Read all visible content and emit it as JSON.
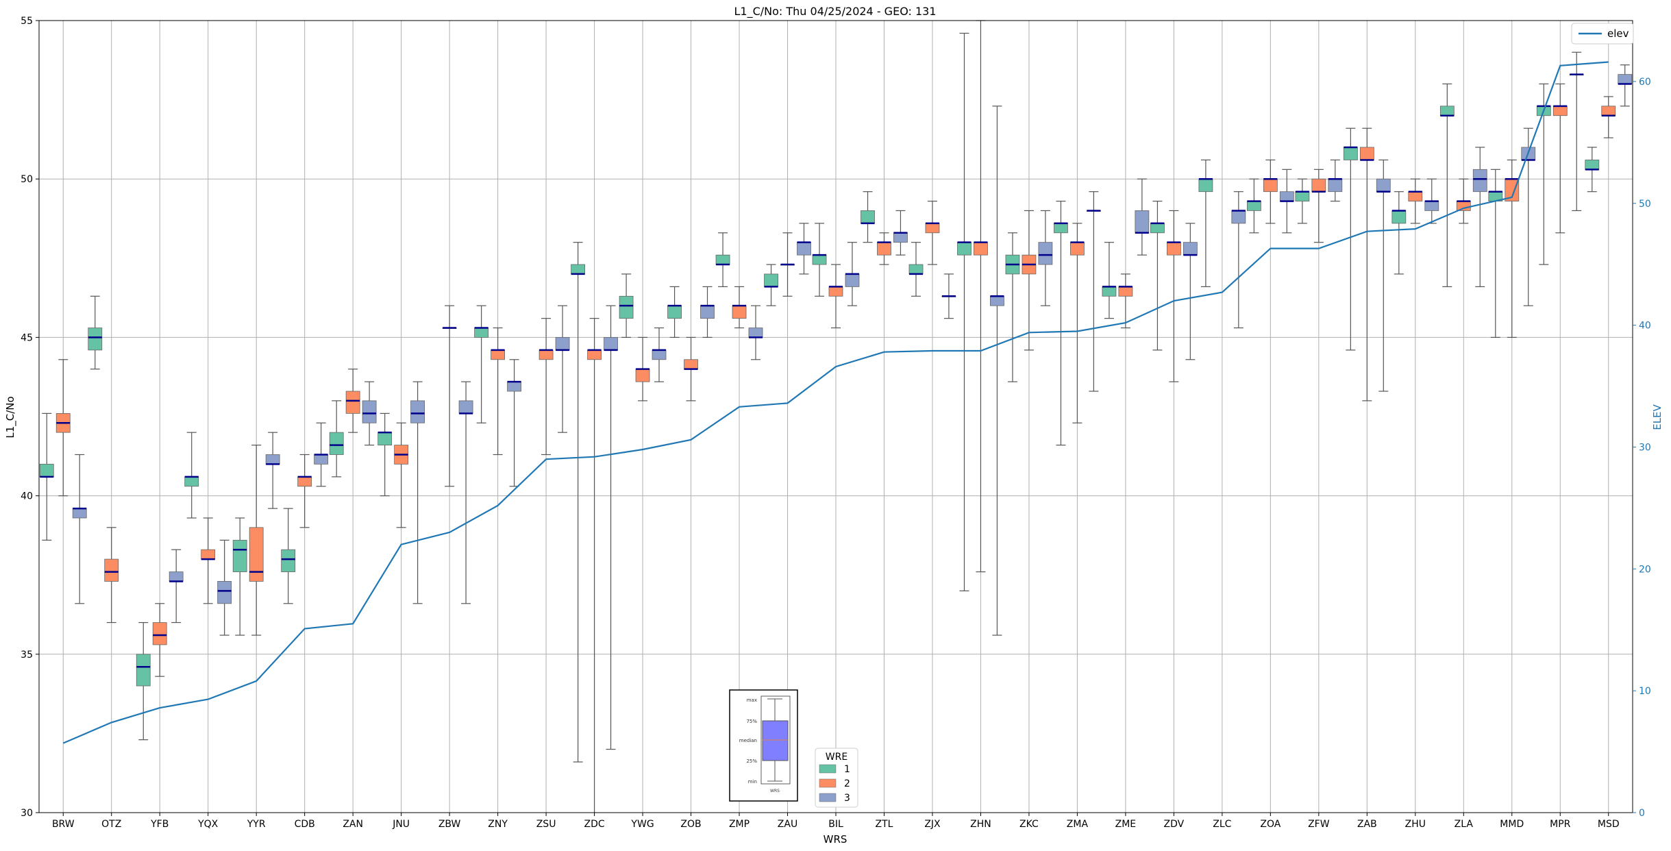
{
  "colors": {
    "series_1": "#66c2a5",
    "series_2": "#fc8d62",
    "series_3": "#8da0cb",
    "elev_line": "#1f77b4",
    "median": "#00008b",
    "whisker": "#555555",
    "grid": "#b0b0b0",
    "inset_box": "#7f7fff",
    "inset_median": "#c08080"
  },
  "chart_data": {
    "type": "box",
    "title": "L1_C/No: Thu 04/25/2024 - GEO: 131",
    "xlabel": "WRS",
    "ylabel": "L1_C/No",
    "y2label": "ELEV",
    "ylim": [
      30,
      55
    ],
    "y2lim": [
      0,
      65
    ],
    "yticks": [
      30,
      35,
      40,
      45,
      50,
      55
    ],
    "y2ticks": [
      0,
      10,
      20,
      30,
      40,
      50,
      60
    ],
    "grid": true,
    "categories": [
      "BRW",
      "OTZ",
      "YFB",
      "YQX",
      "YYR",
      "CDB",
      "ZAN",
      "JNU",
      "ZBW",
      "ZNY",
      "ZSU",
      "ZDC",
      "YWG",
      "ZOB",
      "ZMP",
      "ZAU",
      "BIL",
      "ZTL",
      "ZJX",
      "ZHN",
      "ZKC",
      "ZMA",
      "ZME",
      "ZDV",
      "ZLC",
      "ZOA",
      "ZFW",
      "ZAB",
      "ZHU",
      "ZLA",
      "MMD",
      "MPR",
      "MSD"
    ],
    "legend_elev": {
      "label": "elev",
      "placement": "top-right"
    },
    "legend_wre": {
      "title": "WRE",
      "placement": "bottom-center",
      "entries": [
        "1",
        "2",
        "3"
      ]
    },
    "box_key": {
      "labels": [
        "max",
        "75%",
        "median",
        "25%",
        "min"
      ],
      "xlabel": "WRS"
    },
    "series": [
      {
        "name": "1",
        "boxes": [
          {
            "min": 38.6,
            "q1": 40.6,
            "med": 40.6,
            "q3": 41.0,
            "max": 42.6
          },
          {
            "min": 44.0,
            "q1": 44.6,
            "med": 45.0,
            "q3": 45.3,
            "max": 46.3
          },
          {
            "min": 32.3,
            "q1": 34.0,
            "med": 34.6,
            "q3": 35.0,
            "max": 36.0
          },
          {
            "min": 39.3,
            "q1": 40.3,
            "med": 40.6,
            "q3": 40.6,
            "max": 42.0
          },
          {
            "min": 35.6,
            "q1": 37.6,
            "med": 38.3,
            "q3": 38.6,
            "max": 39.3
          },
          {
            "min": 36.6,
            "q1": 37.6,
            "med": 38.0,
            "q3": 38.3,
            "max": 39.6
          },
          {
            "min": 40.6,
            "q1": 41.3,
            "med": 41.6,
            "q3": 42.0,
            "max": 43.0
          },
          {
            "min": 40.0,
            "q1": 41.6,
            "med": 42.0,
            "q3": 42.0,
            "max": 42.6
          },
          null,
          {
            "min": 42.3,
            "q1": 45.0,
            "med": 45.3,
            "q3": 45.3,
            "max": 46.0
          },
          null,
          {
            "min": 31.6,
            "q1": 47.0,
            "med": 47.0,
            "q3": 47.3,
            "max": 48.0
          },
          {
            "min": 45.0,
            "q1": 45.6,
            "med": 46.0,
            "q3": 46.3,
            "max": 47.0
          },
          {
            "min": 45.0,
            "q1": 45.6,
            "med": 46.0,
            "q3": 46.0,
            "max": 46.6
          },
          {
            "min": 46.6,
            "q1": 47.3,
            "med": 47.3,
            "q3": 47.6,
            "max": 48.3
          },
          {
            "min": 46.0,
            "q1": 46.6,
            "med": 46.6,
            "q3": 47.0,
            "max": 47.3
          },
          {
            "min": 46.3,
            "q1": 47.3,
            "med": 47.6,
            "q3": 47.6,
            "max": 48.6
          },
          {
            "min": 48.0,
            "q1": 48.6,
            "med": 48.6,
            "q3": 49.0,
            "max": 49.6
          },
          {
            "min": 46.3,
            "q1": 47.0,
            "med": 47.0,
            "q3": 47.3,
            "max": 48.0
          },
          {
            "min": 37.0,
            "q1": 47.6,
            "med": 48.0,
            "q3": 48.0,
            "max": 54.6
          },
          {
            "min": 43.6,
            "q1": 47.0,
            "med": 47.3,
            "q3": 47.6,
            "max": 48.3
          },
          {
            "min": 41.6,
            "q1": 48.3,
            "med": 48.6,
            "q3": 48.6,
            "max": 49.3
          },
          {
            "min": 45.6,
            "q1": 46.3,
            "med": 46.6,
            "q3": 46.6,
            "max": 48.0
          },
          {
            "min": 44.6,
            "q1": 48.3,
            "med": 48.6,
            "q3": 48.6,
            "max": 49.3
          },
          {
            "min": 46.6,
            "q1": 49.6,
            "med": 50.0,
            "q3": 50.0,
            "max": 50.6
          },
          {
            "min": 48.3,
            "q1": 49.0,
            "med": 49.3,
            "q3": 49.3,
            "max": 50.0
          },
          {
            "min": 48.6,
            "q1": 49.3,
            "med": 49.6,
            "q3": 49.6,
            "max": 50.0
          },
          {
            "min": 44.6,
            "q1": 50.6,
            "med": 51.0,
            "q3": 51.0,
            "max": 51.6
          },
          {
            "min": 47.0,
            "q1": 48.6,
            "med": 49.0,
            "q3": 49.0,
            "max": 49.6
          },
          {
            "min": 46.6,
            "q1": 52.0,
            "med": 52.0,
            "q3": 52.3,
            "max": 53.0
          },
          {
            "min": 45.0,
            "q1": 49.3,
            "med": 49.6,
            "q3": 49.6,
            "max": 50.3
          },
          {
            "min": 47.3,
            "q1": 52.0,
            "med": 52.3,
            "q3": 52.3,
            "max": 53.0
          },
          {
            "min": 49.6,
            "q1": 50.3,
            "med": 50.3,
            "q3": 50.6,
            "max": 51.0
          }
        ]
      },
      {
        "name": "2",
        "boxes": [
          {
            "min": 40.0,
            "q1": 42.0,
            "med": 42.3,
            "q3": 42.6,
            "max": 44.3
          },
          {
            "min": 36.0,
            "q1": 37.3,
            "med": 37.6,
            "q3": 38.0,
            "max": 39.0
          },
          {
            "min": 34.3,
            "q1": 35.3,
            "med": 35.6,
            "q3": 36.0,
            "max": 36.6
          },
          {
            "min": 36.6,
            "q1": 38.0,
            "med": 38.0,
            "q3": 38.3,
            "max": 39.3
          },
          {
            "min": 35.6,
            "q1": 37.3,
            "med": 37.6,
            "q3": 39.0,
            "max": 41.6
          },
          {
            "min": 39.0,
            "q1": 40.3,
            "med": 40.6,
            "q3": 40.6,
            "max": 41.3
          },
          {
            "min": 42.0,
            "q1": 42.6,
            "med": 43.0,
            "q3": 43.3,
            "max": 44.0
          },
          {
            "min": 39.0,
            "q1": 41.0,
            "med": 41.3,
            "q3": 41.6,
            "max": 42.3
          },
          {
            "min": 40.3,
            "q1": 45.3,
            "med": 45.3,
            "q3": 45.3,
            "max": 46.0
          },
          {
            "min": 41.3,
            "q1": 44.3,
            "med": 44.6,
            "q3": 44.6,
            "max": 45.3
          },
          {
            "min": 41.3,
            "q1": 44.3,
            "med": 44.6,
            "q3": 44.6,
            "max": 45.6
          },
          {
            "min": 24.0,
            "q1": 44.3,
            "med": 44.6,
            "q3": 44.6,
            "max": 45.6
          },
          {
            "min": 43.0,
            "q1": 43.6,
            "med": 44.0,
            "q3": 44.0,
            "max": 45.0
          },
          {
            "min": 43.0,
            "q1": 44.0,
            "med": 44.0,
            "q3": 44.3,
            "max": 45.0
          },
          {
            "min": 45.3,
            "q1": 45.6,
            "med": 46.0,
            "q3": 46.0,
            "max": 46.6
          },
          {
            "min": 46.3,
            "q1": 47.3,
            "med": 47.3,
            "q3": 47.3,
            "max": 48.3
          },
          {
            "min": 45.3,
            "q1": 46.3,
            "med": 46.6,
            "q3": 46.6,
            "max": 47.3
          },
          {
            "min": 47.3,
            "q1": 47.6,
            "med": 48.0,
            "q3": 48.0,
            "max": 48.3
          },
          {
            "min": 47.3,
            "q1": 48.3,
            "med": 48.6,
            "q3": 48.6,
            "max": 49.3
          },
          {
            "min": 37.6,
            "q1": 47.6,
            "med": 48.0,
            "q3": 48.0,
            "max": 55.0
          },
          {
            "min": 44.6,
            "q1": 47.0,
            "med": 47.3,
            "q3": 47.6,
            "max": 49.0
          },
          {
            "min": 42.3,
            "q1": 47.6,
            "med": 48.0,
            "q3": 48.0,
            "max": 48.6
          },
          {
            "min": 45.3,
            "q1": 46.3,
            "med": 46.6,
            "q3": 46.6,
            "max": 47.0
          },
          {
            "min": 43.6,
            "q1": 47.6,
            "med": 48.0,
            "q3": 48.0,
            "max": 49.0
          },
          null,
          {
            "min": 48.6,
            "q1": 49.6,
            "med": 50.0,
            "q3": 50.0,
            "max": 50.6
          },
          {
            "min": 48.0,
            "q1": 49.6,
            "med": 49.6,
            "q3": 50.0,
            "max": 50.3
          },
          {
            "min": 43.0,
            "q1": 50.6,
            "med": 50.6,
            "q3": 51.0,
            "max": 51.6
          },
          {
            "min": 48.6,
            "q1": 49.3,
            "med": 49.6,
            "q3": 49.6,
            "max": 50.0
          },
          {
            "min": 48.6,
            "q1": 49.0,
            "med": 49.3,
            "q3": 49.3,
            "max": 50.0
          },
          {
            "min": 45.0,
            "q1": 49.3,
            "med": 50.0,
            "q3": 50.0,
            "max": 50.6
          },
          {
            "min": 48.3,
            "q1": 52.0,
            "med": 52.3,
            "q3": 52.3,
            "max": 53.0
          },
          {
            "min": 51.3,
            "q1": 52.0,
            "med": 52.0,
            "q3": 52.3,
            "max": 52.6
          }
        ]
      },
      {
        "name": "3",
        "boxes": [
          {
            "min": 36.6,
            "q1": 39.3,
            "med": 39.6,
            "q3": 39.6,
            "max": 41.3
          },
          null,
          {
            "min": 36.0,
            "q1": 37.3,
            "med": 37.3,
            "q3": 37.6,
            "max": 38.3
          },
          {
            "min": 35.6,
            "q1": 36.6,
            "med": 37.0,
            "q3": 37.3,
            "max": 38.6
          },
          {
            "min": 39.6,
            "q1": 41.0,
            "med": 41.0,
            "q3": 41.3,
            "max": 42.0
          },
          {
            "min": 40.3,
            "q1": 41.0,
            "med": 41.3,
            "q3": 41.3,
            "max": 42.3
          },
          {
            "min": 41.6,
            "q1": 42.3,
            "med": 42.6,
            "q3": 43.0,
            "max": 43.6
          },
          {
            "min": 36.6,
            "q1": 42.3,
            "med": 42.6,
            "q3": 43.0,
            "max": 43.6
          },
          {
            "min": 36.6,
            "q1": 42.6,
            "med": 42.6,
            "q3": 43.0,
            "max": 43.6
          },
          {
            "min": 40.3,
            "q1": 43.3,
            "med": 43.6,
            "q3": 43.6,
            "max": 44.3
          },
          {
            "min": 42.0,
            "q1": 44.6,
            "med": 44.6,
            "q3": 45.0,
            "max": 46.0
          },
          {
            "min": 32.0,
            "q1": 44.6,
            "med": 44.6,
            "q3": 45.0,
            "max": 46.0
          },
          {
            "min": 43.6,
            "q1": 44.3,
            "med": 44.6,
            "q3": 44.6,
            "max": 45.3
          },
          {
            "min": 45.0,
            "q1": 45.6,
            "med": 46.0,
            "q3": 46.0,
            "max": 46.6
          },
          {
            "min": 44.3,
            "q1": 45.0,
            "med": 45.0,
            "q3": 45.3,
            "max": 46.0
          },
          {
            "min": 47.0,
            "q1": 47.6,
            "med": 48.0,
            "q3": 48.0,
            "max": 48.6
          },
          {
            "min": 46.0,
            "q1": 46.6,
            "med": 47.0,
            "q3": 47.0,
            "max": 48.0
          },
          {
            "min": 47.6,
            "q1": 48.0,
            "med": 48.3,
            "q3": 48.3,
            "max": 49.0
          },
          {
            "min": 45.6,
            "q1": 46.3,
            "med": 46.3,
            "q3": 46.3,
            "max": 47.0
          },
          {
            "min": 35.6,
            "q1": 46.0,
            "med": 46.3,
            "q3": 46.3,
            "max": 52.3
          },
          {
            "min": 46.0,
            "q1": 47.3,
            "med": 47.6,
            "q3": 48.0,
            "max": 49.0
          },
          {
            "min": 43.3,
            "q1": 49.0,
            "med": 49.0,
            "q3": 49.0,
            "max": 49.6
          },
          {
            "min": 47.6,
            "q1": 48.3,
            "med": 48.3,
            "q3": 49.0,
            "max": 50.0
          },
          {
            "min": 44.3,
            "q1": 47.6,
            "med": 47.6,
            "q3": 48.0,
            "max": 48.6
          },
          {
            "min": 45.3,
            "q1": 48.6,
            "med": 49.0,
            "q3": 49.0,
            "max": 49.6
          },
          {
            "min": 48.3,
            "q1": 49.3,
            "med": 49.3,
            "q3": 49.6,
            "max": 50.3
          },
          {
            "min": 49.3,
            "q1": 49.6,
            "med": 50.0,
            "q3": 50.0,
            "max": 50.6
          },
          {
            "min": 43.3,
            "q1": 49.6,
            "med": 49.6,
            "q3": 50.0,
            "max": 50.6
          },
          {
            "min": 48.6,
            "q1": 49.0,
            "med": 49.3,
            "q3": 49.3,
            "max": 50.0
          },
          {
            "min": 46.6,
            "q1": 49.6,
            "med": 50.0,
            "q3": 50.3,
            "max": 51.0
          },
          {
            "min": 46.0,
            "q1": 50.6,
            "med": 50.6,
            "q3": 51.0,
            "max": 51.6
          },
          {
            "min": 49.0,
            "q1": 53.3,
            "med": 53.3,
            "q3": 53.3,
            "max": 54.0
          },
          {
            "min": 52.3,
            "q1": 53.0,
            "med": 53.0,
            "q3": 53.3,
            "max": 53.6
          }
        ]
      }
    ],
    "elev": {
      "name": "elev",
      "values": [
        5.7,
        7.4,
        8.6,
        9.3,
        10.8,
        15.1,
        15.5,
        22.0,
        23.0,
        25.2,
        29.0,
        29.2,
        29.8,
        30.6,
        33.3,
        33.6,
        36.6,
        37.8,
        37.9,
        37.9,
        39.4,
        39.5,
        40.2,
        42.0,
        42.7,
        46.3,
        46.3,
        47.7,
        47.9,
        49.6,
        50.5,
        61.3,
        61.6
      ]
    }
  }
}
